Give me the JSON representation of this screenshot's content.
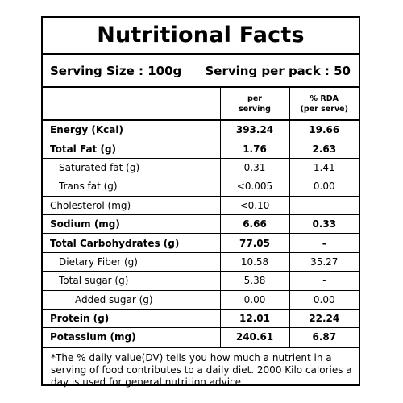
{
  "title": "Nutritional Facts",
  "serving": {
    "size": "Serving Size : 100g",
    "per_pack": "Serving per pack : 50"
  },
  "headers": {
    "per_serving_line1": "per",
    "per_serving_line2": "serving",
    "rda_line1": "% RDA",
    "rda_line2": "(per serve)"
  },
  "rows": [
    {
      "name": "Energy (Kcal)",
      "per_serving": "393.24",
      "rda": "19.66",
      "bold": true,
      "indent": 0
    },
    {
      "name": "Total Fat (g)",
      "per_serving": "1.76",
      "rda": "2.63",
      "bold": true,
      "indent": 0
    },
    {
      "name": "Saturated fat (g)",
      "per_serving": "0.31",
      "rda": "1.41",
      "bold": false,
      "indent": 1
    },
    {
      "name": "Trans fat (g)",
      "per_serving": "<0.005",
      "rda": "0.00",
      "bold": false,
      "indent": 1
    },
    {
      "name": "Cholesterol (mg)",
      "per_serving": "<0.10",
      "rda": "-",
      "bold": false,
      "indent": 0
    },
    {
      "name": "Sodium (mg)",
      "per_serving": "6.66",
      "rda": "0.33",
      "bold": true,
      "indent": 0
    },
    {
      "name": "Total Carbohydrates (g)",
      "per_serving": "77.05",
      "rda": "-",
      "bold": true,
      "indent": 0
    },
    {
      "name": "Dietary Fiber (g)",
      "per_serving": "10.58",
      "rda": "35.27",
      "bold": false,
      "indent": 1
    },
    {
      "name": "Total sugar (g)",
      "per_serving": "5.38",
      "rda": "-",
      "bold": false,
      "indent": 1
    },
    {
      "name": "Added sugar (g)",
      "per_serving": "0.00",
      "rda": "0.00",
      "bold": false,
      "indent": 2
    },
    {
      "name": "Protein (g)",
      "per_serving": "12.01",
      "rda": "22.24",
      "bold": true,
      "indent": 0
    },
    {
      "name": "Potassium (mg)",
      "per_serving": "240.61",
      "rda": "6.87",
      "bold": true,
      "indent": 0
    }
  ],
  "footnote": "*The % daily value(DV) tells you how much a nutrient in a serving of food contributes to a daily diet. 2000 Kilo calories a day is used for general nutrition advice."
}
